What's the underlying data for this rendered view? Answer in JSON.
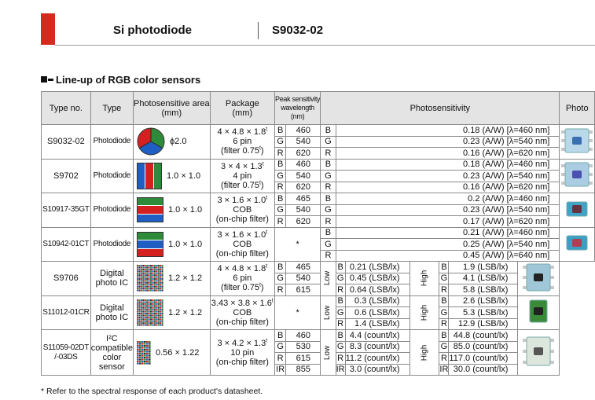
{
  "header": {
    "title": "Si photodiode",
    "model": "S9032-02"
  },
  "section_title": "Line-up of RGB color sensors",
  "columns": {
    "type_no": "Type no.",
    "type": "Type",
    "area": [
      "Photosensitive area",
      "(mm)"
    ],
    "package": [
      "Package",
      "(mm)"
    ],
    "peak": [
      "Peak sensitivity",
      "wavelength",
      "(nm)"
    ],
    "photosensitivity": "Photosensitivity",
    "photo": "Photo"
  },
  "rows": [
    {
      "type_no": "S9032-02",
      "type": "Photodiode",
      "area": "ϕ2.0",
      "package": [
        "4 × 4.8 × 1.8",
        "6 pin",
        "(filter 0.75",
        ")"
      ],
      "peak": [
        [
          "B",
          "460"
        ],
        [
          "G",
          "540"
        ],
        [
          "R",
          "620"
        ]
      ],
      "sens": [
        [
          "B",
          "0.18 (A/W) [λ=460 nm]"
        ],
        [
          "G",
          "0.23 (A/W) [λ=540 nm]"
        ],
        [
          "R",
          "0.16 (A/W) [λ=620 nm]"
        ]
      ]
    },
    {
      "type_no": "S9702",
      "type": "Photodiode",
      "area": "1.0 × 1.0",
      "package": [
        "3 × 4 × 1.3",
        "4 pin",
        "(filter 0.75",
        ")"
      ],
      "peak": [
        [
          "B",
          "460"
        ],
        [
          "G",
          "540"
        ],
        [
          "R",
          "620"
        ]
      ],
      "sens": [
        [
          "B",
          "0.18 (A/W) [λ=460 nm]"
        ],
        [
          "G",
          "0.23 (A/W) [λ=540 nm]"
        ],
        [
          "R",
          "0.16 (A/W) [λ=620 nm]"
        ]
      ]
    },
    {
      "type_no": "S10917-35GT",
      "type": "Photodiode",
      "area": "1.0 × 1.0",
      "package": [
        "3 × 1.6 × 1.0",
        "COB",
        "(on-chip filter)"
      ],
      "peak": [
        [
          "B",
          "465"
        ],
        [
          "G",
          "540"
        ],
        [
          "R",
          "620"
        ]
      ],
      "sens": [
        [
          "B",
          "0.2 (A/W) [λ=460 nm]"
        ],
        [
          "G",
          "0.23 (A/W) [λ=540 nm]"
        ],
        [
          "R",
          "0.17 (A/W) [λ=620 nm]"
        ]
      ]
    },
    {
      "type_no": "S10942-01CT",
      "type": "Photodiode",
      "area": "1.0 × 1.0",
      "package": [
        "3 × 1.6 × 1.0",
        "COB",
        "(on-chip filter)"
      ],
      "peak_note": "*",
      "sens": [
        [
          "B",
          "0.21 (A/W) [λ=460 nm]"
        ],
        [
          "G",
          "0.25 (A/W) [λ=540 nm]"
        ],
        [
          "R",
          "0.45 (A/W) [λ=640 nm]"
        ]
      ]
    },
    {
      "type_no": "S9706",
      "type": [
        "Digital",
        "photo IC"
      ],
      "area": "1.2 × 1.2",
      "package": [
        "4 × 4.8 × 1.8",
        "6 pin",
        "(filter 0.75",
        ")"
      ],
      "peak": [
        [
          "B",
          "465"
        ],
        [
          "G",
          "540"
        ],
        [
          "R",
          "615"
        ]
      ],
      "low": [
        [
          "B",
          "0.21 (LSB/lx)"
        ],
        [
          "G",
          "0.45 (LSB/lx)"
        ],
        [
          "R",
          "0.64 (LSB/lx)"
        ]
      ],
      "high": [
        [
          "B",
          "1.9 (LSB/lx)"
        ],
        [
          "G",
          "4.1 (LSB/lx)"
        ],
        [
          "R",
          "5.8 (LSB/lx)"
        ]
      ]
    },
    {
      "type_no": "S11012-01CR",
      "type": [
        "Digital",
        "photo IC"
      ],
      "area": "1.2 × 1.2",
      "package": [
        "3.43 × 3.8 × 1.6",
        "COB",
        "(on-chip filter)"
      ],
      "peak_note": "*",
      "low": [
        [
          "B",
          "0.3 (LSB/lx)"
        ],
        [
          "G",
          "0.6 (LSB/lx)"
        ],
        [
          "R",
          "1.4 (LSB/lx)"
        ]
      ],
      "high": [
        [
          "B",
          "2.6 (LSB/lx)"
        ],
        [
          "G",
          "5.3 (LSB/lx)"
        ],
        [
          "R",
          "12.9 (LSB/lx)"
        ]
      ]
    },
    {
      "type_no": [
        "S11059-02DT",
        "/-03DS"
      ],
      "type": [
        "I²C",
        "compatible",
        "color",
        "sensor"
      ],
      "area": "0.56 × 1.22",
      "package": [
        "3 × 4.2 × 1.3",
        "10 pin",
        "(on-chip filter)"
      ],
      "peak": [
        [
          "B",
          "460"
        ],
        [
          "G",
          "530"
        ],
        [
          "R",
          "615"
        ],
        [
          "IR",
          "855"
        ]
      ],
      "low": [
        [
          "B",
          "4.4 (count/lx)"
        ],
        [
          "G",
          "8.3 (count/lx)"
        ],
        [
          "R",
          "11.2 (count/lx)"
        ],
        [
          "IR",
          "3.0 (count/lx)"
        ]
      ],
      "high": [
        [
          "B",
          "44.8 (count/lx)"
        ],
        [
          "G",
          "85.0 (count/lx)"
        ],
        [
          "R",
          "117.0 (count/lx)"
        ],
        [
          "IR",
          "30.0 (count/lx)"
        ]
      ]
    }
  ],
  "low_label": "Low",
  "high_label": "High",
  "tolerance_mark": "t",
  "footnote": "* Refer to the spectral response of each product's datasheet."
}
